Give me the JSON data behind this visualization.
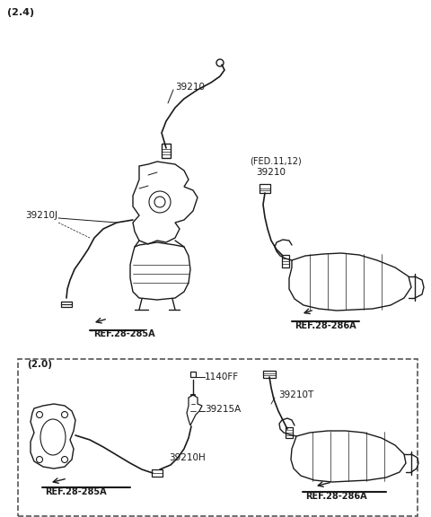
{
  "title": "",
  "bg_color": "#ffffff",
  "line_color": "#1a1a1a",
  "text_color": "#1a1a1a",
  "fig_width": 4.8,
  "fig_height": 5.76,
  "dpi": 100,
  "top_label": "(2.4)",
  "top_section": {
    "label_39210": "39210",
    "label_39210J": "39210J",
    "label_fed": "(FED.11,12)",
    "label_39210_fed": "39210",
    "label_ref285": "REF.28-285A",
    "label_ref286": "REF.28-286A"
  },
  "bottom_section": {
    "box_label": "(2.0)",
    "label_1140FF": "1140FF",
    "label_39215A": "39215A",
    "label_39210T": "39210T",
    "label_39210H": "39210H",
    "label_ref285": "REF.28-285A",
    "label_ref286": "REF.28-286A"
  }
}
